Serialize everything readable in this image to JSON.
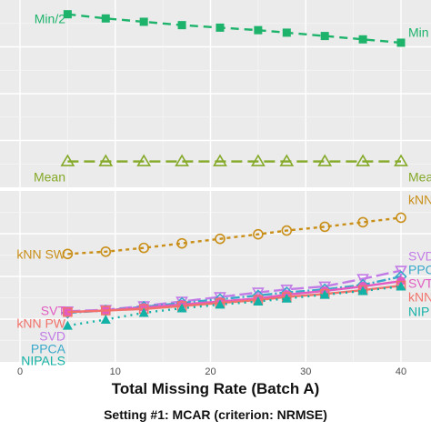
{
  "chart_data": {
    "type": "line",
    "xlabel": "Total Missing Rate (Batch A)",
    "caption": "Setting #1: MCAR (criterion: NRMSE)",
    "x_ticks": [
      0,
      10,
      20,
      30,
      40
    ],
    "xlim": [
      0,
      40
    ],
    "panels": [
      {
        "name": "top",
        "series": [
          {
            "name": "Min/2",
            "left_label": "Min/2",
            "right_label": "Min",
            "color": "#1db36b",
            "marker": "square",
            "dash": "9,6",
            "x": [
              5,
              9,
              13,
              17,
              21,
              25,
              28,
              32,
              36,
              40
            ],
            "y": [
              0.98,
              0.955,
              0.935,
              0.915,
              0.9,
              0.885,
              0.87,
              0.85,
              0.83,
              0.81
            ]
          },
          {
            "name": "Mean",
            "left_label": "Mean",
            "right_label": "Mea",
            "color": "#85a928",
            "marker": "triangle-open",
            "dash": "12,6",
            "x": [
              5,
              9,
              13,
              17,
              21,
              25,
              28,
              32,
              36,
              40
            ],
            "y": [
              0.1,
              0.1,
              0.1,
              0.1,
              0.1,
              0.1,
              0.1,
              0.1,
              0.1,
              0.1
            ]
          }
        ]
      },
      {
        "name": "bottom",
        "series": [
          {
            "name": "kNN SW",
            "left_label": "kNN SW",
            "right_label": "kNN",
            "color": "#c98f18",
            "marker": "circle-open",
            "dash": "4,4",
            "x": [
              5,
              9,
              13,
              17,
              21,
              25,
              28,
              32,
              36,
              40
            ],
            "y": [
              0.655,
              0.67,
              0.695,
              0.725,
              0.755,
              0.785,
              0.81,
              0.835,
              0.865,
              0.895
            ]
          },
          {
            "name": "SVD",
            "left_label": "SVD",
            "right_label": "SVD",
            "color": "#c27be6",
            "marker": "triangle-down-open",
            "dash": "14,5",
            "x": [
              5,
              9,
              13,
              17,
              21,
              25,
              28,
              32,
              36,
              40
            ],
            "y": [
              0.275,
              0.285,
              0.31,
              0.34,
              0.37,
              0.4,
              0.42,
              0.44,
              0.49,
              0.545
            ]
          },
          {
            "name": "PPCA",
            "left_label": "PPCA",
            "right_label": "PPC",
            "color": "#38a8ca",
            "marker": "diamond-open",
            "dash": "10,3,2,3",
            "x": [
              5,
              9,
              13,
              17,
              21,
              25,
              28,
              32,
              36,
              40
            ],
            "y": [
              0.265,
              0.28,
              0.305,
              0.33,
              0.355,
              0.38,
              0.4,
              0.42,
              0.45,
              0.505
            ]
          },
          {
            "name": "SVT",
            "left_label": "SVT",
            "right_label": "SVT",
            "color": "#e25bc2",
            "marker": "circle",
            "dash": "",
            "x": [
              5,
              9,
              13,
              17,
              21,
              25,
              28,
              32,
              36,
              40
            ],
            "y": [
              0.27,
              0.28,
              0.3,
              0.32,
              0.34,
              0.36,
              0.385,
              0.41,
              0.44,
              0.475
            ]
          },
          {
            "name": "kNN PW",
            "left_label": "kNN PW",
            "right_label": "kNN",
            "color": "#f2726b",
            "marker": "square-open",
            "dash": "",
            "x": [
              5,
              9,
              13,
              17,
              21,
              25,
              28,
              32,
              36,
              40
            ],
            "y": [
              0.27,
              0.28,
              0.29,
              0.31,
              0.33,
              0.35,
              0.37,
              0.39,
              0.415,
              0.445
            ]
          },
          {
            "name": "NIPALS",
            "left_label": "NIPALS",
            "right_label": "NIP",
            "color": "#14b2a6",
            "marker": "triangle",
            "dash": "2,5",
            "x": [
              5,
              9,
              13,
              17,
              21,
              25,
              28,
              32,
              36,
              40
            ],
            "y": [
              0.18,
              0.22,
              0.265,
              0.295,
              0.32,
              0.34,
              0.36,
              0.385,
              0.41,
              0.44
            ]
          }
        ]
      }
    ]
  }
}
